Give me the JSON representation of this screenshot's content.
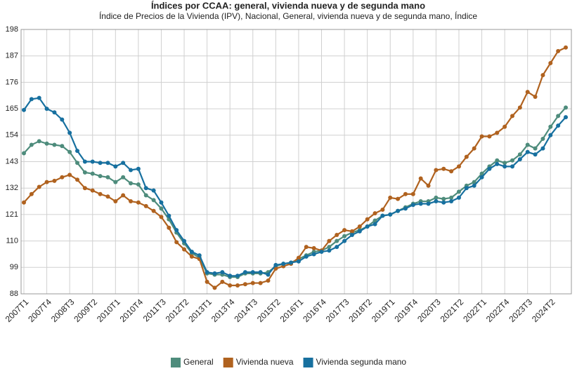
{
  "chart_data": {
    "type": "line",
    "title": "Índices por CCAA: general, vivienda nueva y de segunda mano",
    "subtitle": "Índice de Precios de la Vivienda (IPV), Nacional, General, vivienda nueva y de segunda mano, Índice",
    "categories": [
      "2007T1",
      null,
      null,
      "2007T4",
      null,
      null,
      "2008T3",
      null,
      null,
      "2009T2",
      null,
      null,
      "2010T1",
      null,
      null,
      "2010T4",
      null,
      null,
      "2011T3",
      null,
      null,
      "2012T2",
      null,
      null,
      "2013T1",
      null,
      null,
      "2013T4",
      null,
      null,
      "2014T3",
      null,
      null,
      "2015T2",
      null,
      null,
      "2016T1",
      null,
      null,
      "2016T4",
      null,
      null,
      "2017T3",
      null,
      null,
      "2018T2",
      null,
      null,
      "2019T1",
      null,
      null,
      "2019T4",
      null,
      null,
      "2020T3",
      null,
      null,
      "2021T2",
      null,
      null,
      "2022T1",
      null,
      null,
      "2022T4",
      null,
      null,
      "2023T3",
      null,
      null,
      "2024T2",
      null,
      null
    ],
    "series": [
      {
        "name": "General",
        "color": "#4e8c7c",
        "values": [
          146.5,
          150,
          151.5,
          150.5,
          150,
          149.5,
          147,
          142.5,
          138.5,
          138,
          137,
          136.5,
          134.5,
          136.5,
          134,
          133.5,
          129,
          127,
          123.5,
          119,
          113.5,
          109,
          105,
          103,
          96.5,
          96,
          96,
          95,
          95,
          96.5,
          96.5,
          96.5,
          97,
          99.5,
          100.5,
          101,
          102.5,
          104,
          105.5,
          106,
          107.5,
          110,
          112,
          113.5,
          114.5,
          116,
          118.5,
          120.5,
          121,
          122.5,
          124,
          125.5,
          126.5,
          126.5,
          128,
          127.5,
          128,
          130.5,
          133,
          134.5,
          138,
          141,
          143.5,
          142.5,
          143.5,
          146,
          150,
          148.5,
          152.5,
          157.5,
          162,
          165.5
        ]
      },
      {
        "name": "Vivienda nueva",
        "color": "#b0621f",
        "values": [
          126,
          129.5,
          132.5,
          134.5,
          135,
          136.5,
          137.5,
          135.5,
          132,
          131,
          129.5,
          128.5,
          126.5,
          129,
          126.5,
          126,
          124.5,
          122.5,
          120,
          115.5,
          109.5,
          106.5,
          103.5,
          102.5,
          93,
          90.5,
          93,
          91.5,
          91.5,
          92,
          92.5,
          92.5,
          93.5,
          98.5,
          99.5,
          100.5,
          103,
          107.5,
          107,
          106,
          110,
          112.5,
          114.5,
          114,
          116,
          119,
          121.5,
          123,
          128,
          127.5,
          129.5,
          129.5,
          136,
          133,
          139.5,
          140,
          139,
          141,
          145,
          148.5,
          153.5,
          153.5,
          155,
          157.5,
          162,
          165.5,
          172,
          170,
          179,
          184,
          189,
          190.5
        ]
      },
      {
        "name": "Vivienda segunda mano",
        "color": "#17709f",
        "values": [
          164.5,
          169,
          169.5,
          165,
          163.5,
          160.5,
          155,
          147.5,
          143,
          143,
          142.5,
          142.5,
          141,
          142.5,
          139.5,
          140,
          132,
          131,
          126,
          120.5,
          114.5,
          110,
          105.5,
          104,
          97,
          96.5,
          97,
          95.5,
          95.5,
          97,
          97,
          97,
          96,
          100,
          100.5,
          101,
          101.5,
          103.5,
          104.5,
          105.5,
          106,
          107.5,
          110,
          112.5,
          114,
          116,
          117,
          120.5,
          121,
          122.5,
          123.5,
          125,
          125.5,
          125.5,
          126.5,
          126,
          126.5,
          128,
          132,
          133,
          136.5,
          140,
          142,
          141,
          141,
          144,
          147,
          146,
          148.5,
          154,
          158,
          161.5
        ]
      }
    ],
    "ylim": [
      88,
      198
    ],
    "yticks": [
      88,
      99,
      110,
      121,
      132,
      143,
      154,
      165,
      176,
      187,
      198
    ],
    "grid": true
  }
}
